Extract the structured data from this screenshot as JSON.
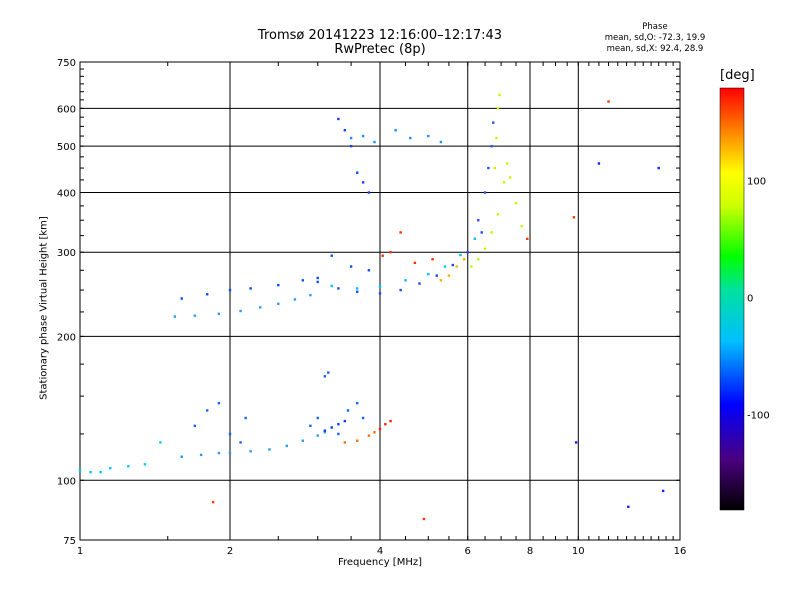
{
  "header": {
    "title": "Tromsø 20141223 12:16:00–12:17:43",
    "subtitle": "RwPretec (8p)"
  },
  "phase_info": {
    "title": "Phase",
    "line_o": "mean, sd,O: -72.3, 19.9",
    "line_x": "mean, sd,X:  92.4, 28.9"
  },
  "colorbar": {
    "unit": "[deg]",
    "range": [
      -180,
      180
    ],
    "ticks": [
      {
        "value": 100,
        "label": "100"
      },
      {
        "value": 0,
        "label": "0"
      },
      {
        "value": -100,
        "label": "-100"
      }
    ]
  },
  "chart_data": {
    "type": "scatter",
    "xlabel": "Frequency [MHz]",
    "ylabel": "Stationary phase Virtual Height [km]",
    "xscale": "log",
    "yscale": "log",
    "xlim": [
      1,
      16
    ],
    "ylim": [
      75,
      750
    ],
    "xticks": [
      {
        "value": 1,
        "label": "1"
      },
      {
        "value": 2,
        "label": "2"
      },
      {
        "value": 4,
        "label": "4"
      },
      {
        "value": 6,
        "label": "6"
      },
      {
        "value": 8,
        "label": "8"
      },
      {
        "value": 10,
        "label": "10"
      },
      {
        "value": 16,
        "label": "16"
      }
    ],
    "yticks": [
      {
        "value": 75,
        "label": "75"
      },
      {
        "value": 100,
        "label": "100"
      },
      {
        "value": 200,
        "label": "200"
      },
      {
        "value": 300,
        "label": "300"
      },
      {
        "value": 400,
        "label": "400"
      },
      {
        "value": 500,
        "label": "500"
      },
      {
        "value": 600,
        "label": "600"
      },
      {
        "value": 750,
        "label": "750"
      }
    ],
    "grid": true,
    "series": [
      {
        "color": "#00c8ff",
        "points": [
          [
            1.0,
            105
          ],
          [
            1.05,
            104
          ],
          [
            1.1,
            104
          ],
          [
            1.15,
            106
          ],
          [
            1.25,
            107
          ],
          [
            1.35,
            108
          ],
          [
            1.45,
            120
          ],
          [
            1.6,
            112
          ]
        ]
      },
      {
        "color": "#2a9aff",
        "points": [
          [
            1.6,
            112
          ],
          [
            1.75,
            113
          ],
          [
            1.9,
            114
          ],
          [
            2.0,
            114
          ],
          [
            2.2,
            115
          ],
          [
            2.4,
            116
          ],
          [
            2.6,
            118
          ],
          [
            2.8,
            121
          ],
          [
            3.0,
            124
          ],
          [
            3.1,
            126
          ]
        ]
      },
      {
        "color": "#0040ff",
        "points": [
          [
            3.1,
            127
          ],
          [
            3.2,
            129
          ],
          [
            3.3,
            131
          ],
          [
            3.4,
            133
          ]
        ]
      },
      {
        "color": "#ff7000",
        "points": [
          [
            3.4,
            120
          ],
          [
            3.6,
            121
          ],
          [
            3.8,
            124
          ],
          [
            3.9,
            126
          ]
        ]
      },
      {
        "color": "#ff2000",
        "points": [
          [
            4.0,
            128
          ],
          [
            4.1,
            131
          ],
          [
            4.2,
            133
          ]
        ]
      },
      {
        "color": "#1e60ff",
        "points": [
          [
            1.7,
            130
          ],
          [
            1.8,
            140
          ],
          [
            1.9,
            145
          ],
          [
            2.0,
            125
          ],
          [
            2.1,
            120
          ],
          [
            2.15,
            135
          ]
        ]
      },
      {
        "color": "#1464ff",
        "points": [
          [
            2.9,
            130
          ],
          [
            3.0,
            135
          ],
          [
            3.1,
            165
          ],
          [
            3.15,
            168
          ],
          [
            3.3,
            125
          ],
          [
            3.45,
            140
          ],
          [
            3.6,
            145
          ],
          [
            3.7,
            135
          ]
        ]
      },
      {
        "color": "#2a9aff",
        "points": [
          [
            1.55,
            220
          ],
          [
            1.7,
            221
          ],
          [
            1.9,
            223
          ],
          [
            2.1,
            226
          ],
          [
            2.3,
            230
          ],
          [
            2.5,
            234
          ],
          [
            2.7,
            239
          ],
          [
            2.9,
            244
          ]
        ]
      },
      {
        "color": "#0050ff",
        "points": [
          [
            1.6,
            240
          ],
          [
            1.8,
            245
          ],
          [
            2.0,
            250
          ],
          [
            2.2,
            252
          ],
          [
            2.5,
            256
          ],
          [
            2.8,
            262
          ],
          [
            3.0,
            265
          ],
          [
            3.2,
            295
          ],
          [
            3.5,
            280
          ],
          [
            3.8,
            275
          ]
        ]
      },
      {
        "color": "#1a4aff",
        "points": [
          [
            3.0,
            260
          ],
          [
            3.3,
            252
          ],
          [
            3.6,
            248
          ],
          [
            4.0,
            246
          ],
          [
            4.4,
            250
          ],
          [
            4.8,
            258
          ],
          [
            5.2,
            268
          ],
          [
            5.6,
            282
          ],
          [
            6.0,
            300
          ],
          [
            6.4,
            330
          ]
        ]
      },
      {
        "color": "#00c0ff",
        "points": [
          [
            3.2,
            255
          ],
          [
            3.6,
            252
          ],
          [
            4.0,
            254
          ],
          [
            4.5,
            262
          ],
          [
            5.0,
            270
          ],
          [
            5.4,
            280
          ],
          [
            5.8,
            296
          ],
          [
            6.2,
            320
          ]
        ]
      },
      {
        "color": "#ff3000",
        "points": [
          [
            4.05,
            295
          ],
          [
            4.2,
            300
          ],
          [
            4.4,
            330
          ],
          [
            4.7,
            285
          ],
          [
            5.1,
            290
          ]
        ]
      },
      {
        "color": "#ffb000",
        "points": [
          [
            5.3,
            262
          ],
          [
            5.5,
            268
          ],
          [
            5.7,
            280
          ],
          [
            5.9,
            290
          ]
        ]
      },
      {
        "color": "#b8ff00",
        "points": [
          [
            6.1,
            280
          ],
          [
            6.3,
            290
          ],
          [
            6.5,
            305
          ],
          [
            6.7,
            330
          ],
          [
            6.9,
            360
          ],
          [
            7.1,
            420
          ],
          [
            7.2,
            460
          ]
        ]
      },
      {
        "color": "#d0f000",
        "points": [
          [
            6.8,
            450
          ],
          [
            6.85,
            520
          ],
          [
            6.9,
            600
          ],
          [
            6.95,
            640
          ],
          [
            7.3,
            430
          ],
          [
            7.5,
            380
          ],
          [
            7.7,
            340
          ]
        ]
      },
      {
        "color": "#2850ff",
        "points": [
          [
            6.3,
            350
          ],
          [
            6.5,
            400
          ],
          [
            6.6,
            450
          ],
          [
            6.7,
            500
          ],
          [
            6.75,
            560
          ]
        ]
      },
      {
        "color": "#1040ff",
        "points": [
          [
            3.3,
            570
          ],
          [
            3.4,
            540
          ],
          [
            3.5,
            500
          ],
          [
            3.6,
            440
          ],
          [
            3.7,
            420
          ],
          [
            3.8,
            400
          ]
        ]
      },
      {
        "color": "#1a8fff",
        "points": [
          [
            3.5,
            520
          ],
          [
            3.7,
            525
          ],
          [
            3.9,
            510
          ],
          [
            4.3,
            540
          ],
          [
            4.6,
            520
          ],
          [
            5.0,
            525
          ],
          [
            5.3,
            510
          ]
        ]
      },
      {
        "color": "#ff3a00",
        "points": [
          [
            1.85,
            90
          ],
          [
            4.9,
            83
          ],
          [
            11.5,
            620
          ],
          [
            7.9,
            320
          ],
          [
            9.8,
            355
          ]
        ]
      },
      {
        "color": "#1020ff",
        "points": [
          [
            9.9,
            120
          ],
          [
            11.0,
            460
          ],
          [
            14.5,
            450
          ],
          [
            14.8,
            95
          ],
          [
            12.6,
            88
          ]
        ]
      }
    ]
  }
}
